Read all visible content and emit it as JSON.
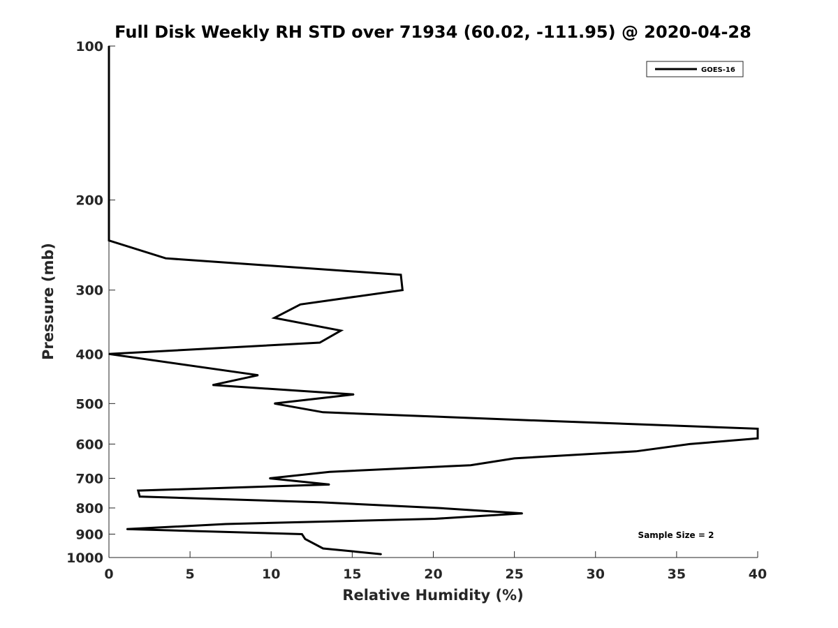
{
  "chart_data": {
    "type": "line",
    "title": "Full Disk Weekly RH STD over 71934 (60.02, -111.95) @ 2020-04-28",
    "xlabel": "Relative Humidity (%)",
    "ylabel": "Pressure (mb)",
    "xlim": [
      0,
      40
    ],
    "ylim": [
      100,
      1000
    ],
    "y_scale": "log",
    "y_reversed": true,
    "grid": false,
    "x_ticks": [
      0,
      5,
      10,
      15,
      20,
      25,
      30,
      35,
      40
    ],
    "x_tick_labels": [
      "0",
      "5",
      "10",
      "15",
      "20",
      "25",
      "30",
      "35",
      "40"
    ],
    "y_ticks": [
      100,
      200,
      300,
      400,
      500,
      600,
      700,
      800,
      900,
      1000
    ],
    "y_tick_labels": [
      "100",
      "200",
      "300",
      "400",
      "500",
      "600",
      "700",
      "800",
      "900",
      "1000"
    ],
    "legend": {
      "position": "top-right",
      "entries": [
        "GOES-16"
      ]
    },
    "annotation": "Sample Size = 2",
    "series": [
      {
        "name": "GOES-16",
        "color": "#000000",
        "points": [
          {
            "rh": 0.0,
            "p": 100
          },
          {
            "rh": 0.0,
            "p": 150
          },
          {
            "rh": 0.0,
            "p": 200
          },
          {
            "rh": 0.0,
            "p": 240
          },
          {
            "rh": 3.5,
            "p": 260
          },
          {
            "rh": 18.0,
            "p": 280
          },
          {
            "rh": 18.1,
            "p": 300
          },
          {
            "rh": 11.8,
            "p": 320
          },
          {
            "rh": 10.2,
            "p": 340
          },
          {
            "rh": 14.3,
            "p": 360
          },
          {
            "rh": 13.0,
            "p": 380
          },
          {
            "rh": 0.0,
            "p": 400
          },
          {
            "rh": 9.2,
            "p": 440
          },
          {
            "rh": 6.4,
            "p": 460
          },
          {
            "rh": 15.1,
            "p": 480
          },
          {
            "rh": 10.2,
            "p": 500
          },
          {
            "rh": 13.2,
            "p": 520
          },
          {
            "rh": 26.5,
            "p": 540
          },
          {
            "rh": 40.0,
            "p": 560
          },
          {
            "rh": 40.0,
            "p": 585
          },
          {
            "rh": 35.8,
            "p": 600
          },
          {
            "rh": 32.5,
            "p": 620
          },
          {
            "rh": 25.0,
            "p": 640
          },
          {
            "rh": 22.3,
            "p": 660
          },
          {
            "rh": 13.6,
            "p": 680
          },
          {
            "rh": 9.9,
            "p": 700
          },
          {
            "rh": 13.6,
            "p": 720
          },
          {
            "rh": 1.8,
            "p": 740
          },
          {
            "rh": 1.9,
            "p": 760
          },
          {
            "rh": 13.1,
            "p": 780
          },
          {
            "rh": 20.3,
            "p": 800
          },
          {
            "rh": 25.5,
            "p": 820
          },
          {
            "rh": 20.1,
            "p": 840
          },
          {
            "rh": 7.2,
            "p": 860
          },
          {
            "rh": 1.1,
            "p": 880
          },
          {
            "rh": 11.9,
            "p": 900
          },
          {
            "rh": 12.1,
            "p": 920
          },
          {
            "rh": 13.2,
            "p": 960
          },
          {
            "rh": 16.8,
            "p": 985
          }
        ]
      }
    ]
  }
}
